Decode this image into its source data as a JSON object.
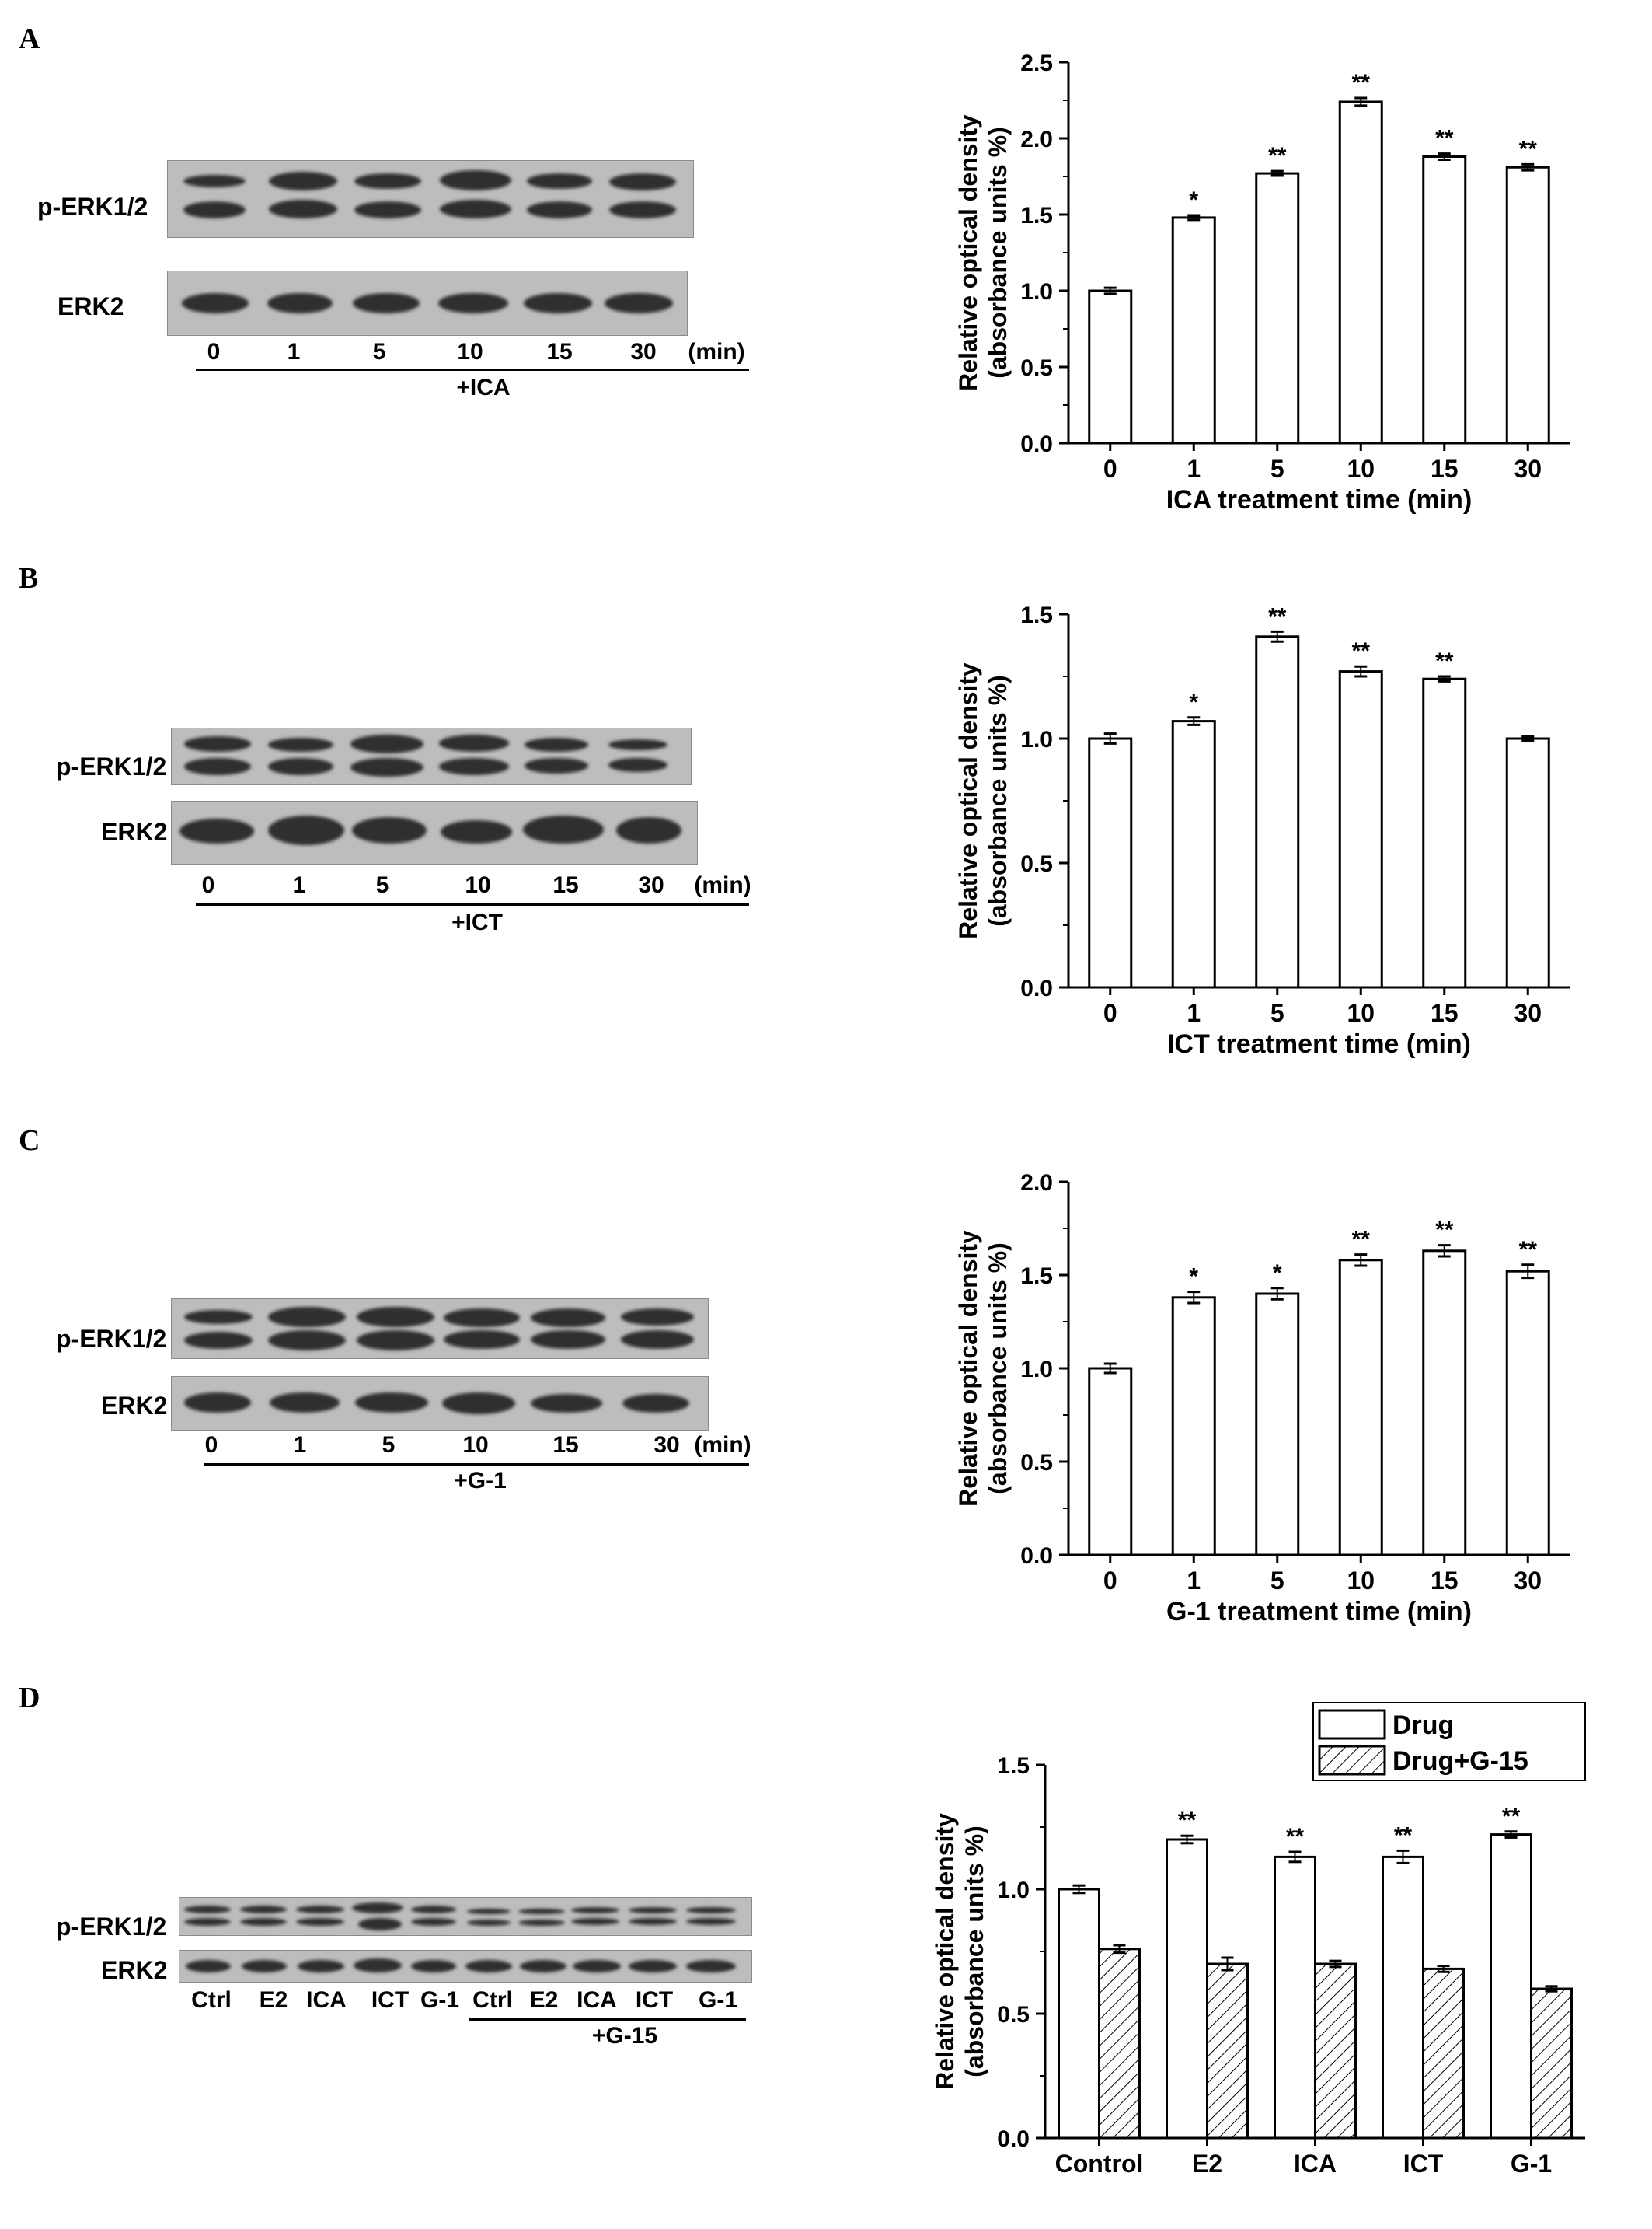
{
  "panels": [
    {
      "letter": "A",
      "blot": {
        "row1": "p-ERK1/2",
        "row2": "ERK2",
        "lanes": [
          "0",
          "1",
          "5",
          "10",
          "15",
          "30"
        ],
        "unit": "(min)",
        "treatment": "+ICA"
      }
    },
    {
      "letter": "B",
      "blot": {
        "row1": "p-ERK1/2",
        "row2": "ERK2",
        "lanes": [
          "0",
          "1",
          "5",
          "10",
          "15",
          "30"
        ],
        "unit": "(min)",
        "treatment": "+ICT"
      }
    },
    {
      "letter": "C",
      "blot": {
        "row1": "p-ERK1/2",
        "row2": "ERK2",
        "lanes": [
          "0",
          "1",
          "5",
          "10",
          "15",
          "30"
        ],
        "unit": "(min)",
        "treatment": "+G-1"
      }
    },
    {
      "letter": "D",
      "blot": {
        "row1": "p-ERK1/2",
        "row2": "ERK2",
        "lanes": [
          "Ctrl",
          "E2",
          "ICA",
          "ICT",
          "G-1",
          "Ctrl",
          "E2",
          "ICA",
          "ICT",
          "G-1"
        ],
        "unit": "",
        "treatment": "+G-15"
      }
    }
  ],
  "chart_data": [
    {
      "type": "bar",
      "categories": [
        "0",
        "1",
        "5",
        "10",
        "15",
        "30"
      ],
      "values": [
        1.0,
        1.48,
        1.77,
        2.24,
        1.88,
        1.81
      ],
      "errors": [
        0.02,
        0.015,
        0.015,
        0.025,
        0.02,
        0.02
      ],
      "significance": [
        "",
        "*",
        "**",
        "**",
        "**",
        "**"
      ],
      "xlabel": "ICA treatment time (min)",
      "ylabel": "Relative optical density",
      "ylabel2": "(absorbance units %)",
      "ylim": [
        0,
        2.5
      ],
      "yticks": [
        "0.0",
        "0.5",
        "1.0",
        "1.5",
        "2.0",
        "2.5"
      ]
    },
    {
      "type": "bar",
      "categories": [
        "0",
        "1",
        "5",
        "10",
        "15",
        "30"
      ],
      "values": [
        1.0,
        1.07,
        1.41,
        1.27,
        1.24,
        1.0
      ],
      "errors": [
        0.02,
        0.015,
        0.02,
        0.02,
        0.01,
        0.008
      ],
      "significance": [
        "",
        "*",
        "**",
        "**",
        "**",
        ""
      ],
      "xlabel": "ICT treatment time (min)",
      "ylabel": "Relative optical density",
      "ylabel2": "(absorbance units %)",
      "ylim": [
        0,
        1.5
      ],
      "yticks": [
        "0.0",
        "0.5",
        "1.0",
        "1.5"
      ]
    },
    {
      "type": "bar",
      "categories": [
        "0",
        "1",
        "5",
        "10",
        "15",
        "30"
      ],
      "values": [
        1.0,
        1.38,
        1.4,
        1.58,
        1.63,
        1.52
      ],
      "errors": [
        0.025,
        0.03,
        0.03,
        0.03,
        0.03,
        0.035
      ],
      "significance": [
        "",
        "*",
        "*",
        "**",
        "**",
        "**"
      ],
      "xlabel": "G-1 treatment time (min)",
      "ylabel": "Relative optical density",
      "ylabel2": "(absorbance units %)",
      "ylim": [
        0,
        2.0
      ],
      "yticks": [
        "0.0",
        "0.5",
        "1.0",
        "1.5",
        "2.0"
      ]
    },
    {
      "type": "bar",
      "categories": [
        "Control",
        "E2",
        "ICA",
        "ICT",
        "G-1"
      ],
      "series": [
        {
          "name": "Drug",
          "values": [
            1.0,
            1.2,
            1.13,
            1.13,
            1.22
          ],
          "errors": [
            0.015,
            0.015,
            0.02,
            0.025,
            0.012
          ],
          "significance": [
            "",
            "**",
            "**",
            "**",
            "**"
          ]
        },
        {
          "name": "Drug+G-15",
          "values": [
            0.76,
            0.7,
            0.7,
            0.68,
            0.6
          ],
          "errors": [
            0.015,
            0.025,
            0.012,
            0.012,
            0.01
          ],
          "significance": [
            "",
            "",
            "",
            "",
            ""
          ]
        }
      ],
      "xlabel": "",
      "ylabel": "Relative optical density",
      "ylabel2": "(absorbance units %)",
      "ylim": [
        0,
        1.5
      ],
      "yticks": [
        "0.0",
        "0.5",
        "1.0",
        "1.5"
      ],
      "legend": "top-right"
    }
  ]
}
